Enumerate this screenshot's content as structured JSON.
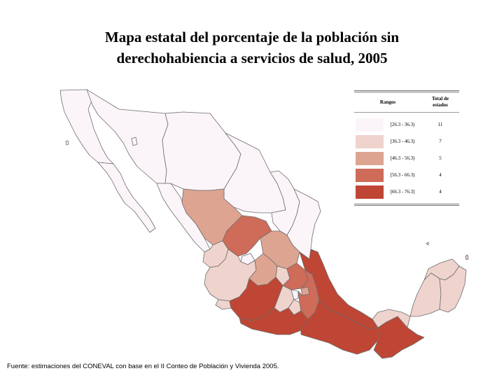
{
  "title_line1": "Mapa estatal del porcentaje de la población sin",
  "title_line2": "derechohabiencia a servicios de salud, 2005",
  "legend": {
    "header_ranges": "Rangos",
    "header_total_line1": "Total de",
    "header_total_line2": "estados",
    "rows": [
      {
        "range": "[26.3 - 36.3)",
        "count": "11",
        "color": "#fbf5fa"
      },
      {
        "range": "[36.3 - 46.3)",
        "count": "7",
        "color": "#efd3cd"
      },
      {
        "range": "[46.3 - 56.3)",
        "count": "5",
        "color": "#dea492"
      },
      {
        "range": "[56.3 - 66.3)",
        "count": "4",
        "color": "#cf6b59"
      },
      {
        "range": "[66.3 - 76.3]",
        "count": "4",
        "color": "#bf4634"
      }
    ]
  },
  "footer": "Fuente: estimaciones del CONEVAL con base en el II Conteo de Población y Vivienda 2005."
}
